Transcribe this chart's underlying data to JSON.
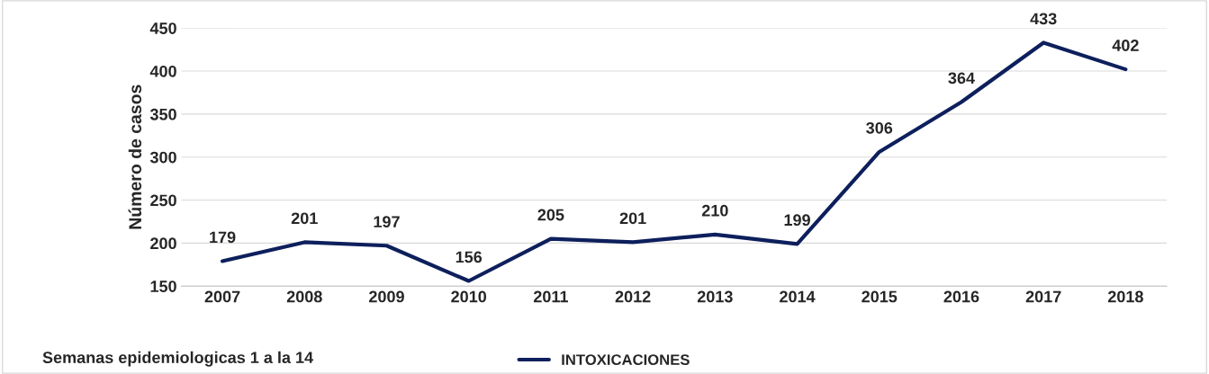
{
  "chart_data": {
    "type": "line",
    "ylabel": "Número de casos",
    "categories": [
      "2007",
      "2008",
      "2009",
      "2010",
      "2011",
      "2012",
      "2013",
      "2014",
      "2015",
      "2016",
      "2017",
      "2018"
    ],
    "series": [
      {
        "name": "INTOXICACIONES",
        "color": "#0d1f5c",
        "values": [
          179,
          201,
          197,
          156,
          205,
          201,
          210,
          199,
          306,
          364,
          433,
          402
        ]
      }
    ],
    "ylim": [
      150,
      450
    ],
    "yticks": [
      150,
      200,
      250,
      300,
      350,
      400,
      450
    ],
    "grid": "y",
    "legend": "bottom",
    "data_labels": true,
    "marker": "none",
    "line_style": "solid",
    "annotations": [
      "Semanas epidemiologicas 1 a la 14"
    ]
  }
}
